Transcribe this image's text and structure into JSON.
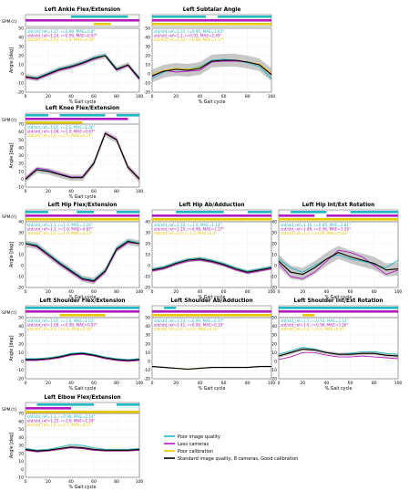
{
  "figure": {
    "xlabel": "% Gait cycle",
    "legend": [
      {
        "label": "Poor image quality",
        "color": "#22b7c4"
      },
      {
        "label": "Less cameras",
        "color": "#b31bbf"
      },
      {
        "label": "Poor calibration",
        "color": "#e8c600"
      },
      {
        "label": "Standard image quality, 8 cameras, Good calibration",
        "color": "#000000"
      }
    ],
    "colors": {
      "poor_image": "#22b7c4",
      "less_cameras": "#b31bbf",
      "poor_calibration": "#e8c600",
      "standard": "#000000",
      "band": "#9a9a9a"
    }
  },
  "chart_data": [
    {
      "type": "line",
      "title": "Left Ankle Flex/Extension",
      "ylabel": "Angle [deg]",
      "spm_label": "SPM{t}",
      "xlabel": "% Gait cycle",
      "xlim": [
        0,
        100
      ],
      "ylim": [
        -20,
        50
      ],
      "yticks": [
        -20,
        -10,
        0,
        10,
        20,
        30,
        40,
        50
      ],
      "xticks": [
        0,
        20,
        40,
        60,
        80,
        100
      ],
      "stats": [
        "std/std_ref=1.27, r=0.99, MAE=0.8°",
        "std/std_ref=1.24, r=0.99, MAE=0.97°",
        "std/std_ref=1.02, r=1.0, MAE=0.39°"
      ],
      "x": [
        0,
        10,
        20,
        30,
        40,
        50,
        60,
        70,
        80,
        90,
        100
      ],
      "series": [
        {
          "key": "standard",
          "values": [
            -3,
            -5,
            0,
            5,
            8,
            12,
            17,
            20,
            5,
            10,
            -5
          ]
        },
        {
          "key": "poor_image",
          "values": [
            -3,
            -4,
            1,
            6,
            9,
            13,
            18,
            21,
            6,
            10,
            -4
          ]
        },
        {
          "key": "less_cameras",
          "values": [
            -4,
            -6,
            -1,
            4,
            7,
            11,
            16,
            20,
            4,
            9,
            -6
          ]
        },
        {
          "key": "poor_calibration",
          "values": [
            -3,
            -5,
            0,
            5,
            8,
            12,
            17,
            20,
            5,
            10,
            -5
          ]
        }
      ],
      "band_width": 3
    },
    {
      "type": "line",
      "title": "Left Subtalar Angle",
      "ylabel": "",
      "spm_label": "",
      "xlabel": "% Gait cycle",
      "xlim": [
        0,
        100
      ],
      "ylim": [
        -20,
        50
      ],
      "yticks": [
        -20,
        -10,
        0,
        10,
        20,
        30,
        40,
        50
      ],
      "xticks": [
        0,
        20,
        40,
        60,
        80,
        100
      ],
      "stats": [
        "std/std_ref=1.31, r=0.95, MAE=1.63°",
        "std/std_ref=1.2, r=0.93, MAE=2.49°",
        "std/std_ref=1.02, r=0.98, MAE=1.17°"
      ],
      "x": [
        0,
        10,
        20,
        30,
        40,
        50,
        60,
        70,
        80,
        90,
        100
      ],
      "series": [
        {
          "key": "standard",
          "values": [
            -2,
            3,
            5,
            4,
            6,
            14,
            15,
            15,
            13,
            10,
            -1
          ]
        },
        {
          "key": "poor_image",
          "values": [
            -5,
            2,
            6,
            5,
            8,
            15,
            16,
            15,
            12,
            8,
            -5
          ]
        },
        {
          "key": "less_cameras",
          "values": [
            -3,
            4,
            2,
            3,
            4,
            13,
            14,
            14,
            13,
            10,
            0
          ]
        },
        {
          "key": "poor_calibration",
          "values": [
            0,
            4,
            6,
            5,
            7,
            14,
            15,
            15,
            13,
            11,
            1
          ]
        }
      ],
      "band_width": 7
    },
    {
      "type": "line",
      "title": "Left Knee Flex/Extension",
      "ylabel": "Angle [deg]",
      "spm_label": "SPM{t}",
      "xlabel": "% Gait cycle",
      "xlim": [
        0,
        100
      ],
      "ylim": [
        -10,
        70
      ],
      "yticks": [
        -10,
        0,
        10,
        20,
        30,
        40,
        50,
        60,
        70
      ],
      "xticks": [
        0,
        20,
        40,
        60,
        80,
        100
      ],
      "stats": [
        "std/std_ref=1.05, r=1.0, MAE=1.66°",
        "std/std_ref=1.08, r=1.0, MAE=0.67°",
        "std/std_ref=1.0, r=1.0, MAE=0.21°"
      ],
      "x": [
        0,
        10,
        20,
        30,
        40,
        50,
        60,
        70,
        80,
        90,
        100
      ],
      "series": [
        {
          "key": "standard",
          "values": [
            0,
            12,
            10,
            6,
            2,
            2,
            20,
            58,
            50,
            15,
            0
          ]
        },
        {
          "key": "poor_image",
          "values": [
            0,
            13,
            11,
            7,
            3,
            3,
            21,
            59,
            50,
            15,
            1
          ]
        },
        {
          "key": "less_cameras",
          "values": [
            1,
            14,
            12,
            7,
            3,
            3,
            21,
            59,
            51,
            16,
            1
          ]
        },
        {
          "key": "poor_calibration",
          "values": [
            0,
            12,
            10,
            6,
            2,
            2,
            20,
            58,
            50,
            15,
            0
          ]
        }
      ],
      "band_width": 4
    },
    {
      "type": "line",
      "title": "Left Hip Flex/Extension",
      "ylabel": "Angle [deg]",
      "spm_label": "SPM{t}",
      "xlabel": "% Gait cycle",
      "xlim": [
        0,
        100
      ],
      "ylim": [
        -20,
        40
      ],
      "yticks": [
        -20,
        -10,
        0,
        10,
        20,
        30,
        40
      ],
      "xticks": [
        0,
        20,
        40,
        60,
        80,
        100
      ],
      "stats": [
        "std/std_ref=1.1, r=1.0, MAE=1.26°",
        "std/std_ref=1.2, r=1.0, MAE=0.87°",
        "std/std_ref=1.0, r=1.0, MAE=0.13°"
      ],
      "x": [
        0,
        10,
        20,
        30,
        40,
        50,
        60,
        70,
        80,
        90,
        100
      ],
      "series": [
        {
          "key": "standard",
          "values": [
            20,
            18,
            10,
            2,
            -5,
            -12,
            -14,
            -5,
            15,
            22,
            20
          ]
        },
        {
          "key": "poor_image",
          "values": [
            21,
            19,
            11,
            3,
            -4,
            -11,
            -13,
            -4,
            16,
            23,
            21
          ]
        },
        {
          "key": "less_cameras",
          "values": [
            20,
            17,
            9,
            1,
            -6,
            -13,
            -15,
            -6,
            14,
            21,
            20
          ]
        },
        {
          "key": "poor_calibration",
          "values": [
            20,
            18,
            10,
            2,
            -5,
            -12,
            -14,
            -5,
            15,
            22,
            20
          ]
        }
      ],
      "band_width": 3
    },
    {
      "type": "line",
      "title": "Left Hip Ab/Adduction",
      "ylabel": "",
      "spm_label": "",
      "xlabel": "% Gait cycle",
      "xlim": [
        0,
        100
      ],
      "ylim": [
        -20,
        40
      ],
      "yticks": [
        -20,
        -10,
        0,
        10,
        20,
        30,
        40
      ],
      "xticks": [
        0,
        20,
        40,
        60,
        80,
        100
      ],
      "stats": [
        "std/std_ref=1.32, r=1.0, MAE=1.14°",
        "std/std_ref=1.25, r=0.98, MAE=1.17°",
        "std/std_ref=1.0, r=1.0, MAE=0.2°"
      ],
      "x": [
        0,
        10,
        20,
        30,
        40,
        50,
        60,
        70,
        80,
        90,
        100
      ],
      "series": [
        {
          "key": "standard",
          "values": [
            -4,
            -2,
            2,
            5,
            6,
            4,
            1,
            -3,
            -6,
            -4,
            -2
          ]
        },
        {
          "key": "poor_image",
          "values": [
            -3,
            -1,
            3,
            6,
            7,
            5,
            2,
            -2,
            -5,
            -3,
            -1
          ]
        },
        {
          "key": "less_cameras",
          "values": [
            -5,
            -3,
            1,
            4,
            5,
            3,
            0,
            -4,
            -7,
            -5,
            -3
          ]
        },
        {
          "key": "poor_calibration",
          "values": [
            -4,
            -2,
            2,
            5,
            6,
            4,
            1,
            -3,
            -6,
            -4,
            -2
          ]
        }
      ],
      "band_width": 2
    },
    {
      "type": "line",
      "title": "Left Hip Int/Ext Rotation",
      "ylabel": "",
      "spm_label": "",
      "xlabel": "% Gait cycle",
      "xlim": [
        0,
        100
      ],
      "ylim": [
        -20,
        40
      ],
      "yticks": [
        -20,
        -10,
        0,
        10,
        20,
        30,
        40
      ],
      "xticks": [
        0,
        20,
        40,
        60,
        80,
        100
      ],
      "stats": [
        "std/std_ref=1.16, r=0.85, MAE=2.81°",
        "std/std_ref=1.48, r=0.96, MAE=3.55°",
        "std/std_ref=1.0, r=0.99, MAE=0.43°"
      ],
      "x": [
        0,
        10,
        20,
        30,
        40,
        50,
        60,
        70,
        80,
        90,
        100
      ],
      "series": [
        {
          "key": "standard",
          "values": [
            4,
            -6,
            -8,
            -2,
            6,
            12,
            8,
            5,
            2,
            -4,
            -3
          ]
        },
        {
          "key": "poor_image",
          "values": [
            6,
            -2,
            -6,
            0,
            6,
            10,
            6,
            4,
            1,
            -2,
            5
          ]
        },
        {
          "key": "less_cameras",
          "values": [
            2,
            -10,
            -12,
            -6,
            4,
            14,
            12,
            8,
            0,
            -8,
            -4
          ]
        },
        {
          "key": "poor_calibration",
          "values": [
            4,
            -6,
            -8,
            -2,
            6,
            12,
            8,
            5,
            2,
            -4,
            -3
          ]
        }
      ],
      "band_width": 6
    },
    {
      "type": "line",
      "title": "Left Shoulder Flex/Extension",
      "ylabel": "Angle [deg]",
      "spm_label": "SPM{t}",
      "xlabel": "% Gait cycle",
      "xlim": [
        0,
        100
      ],
      "ylim": [
        -20,
        50
      ],
      "yticks": [
        -20,
        -10,
        0,
        10,
        20,
        30,
        40,
        50
      ],
      "xticks": [
        0,
        20,
        40,
        60,
        80,
        100
      ],
      "stats": [
        "std/std_ref=1.05, r=1.0, MAE=1.52°",
        "std/std_ref=1.08, r=0.99, MAE=0.97°",
        "std/std_ref=1.0, r=1.0, MAE=0.19°"
      ],
      "x": [
        0,
        10,
        20,
        30,
        40,
        50,
        60,
        70,
        80,
        90,
        100
      ],
      "series": [
        {
          "key": "standard",
          "values": [
            2,
            2,
            3,
            5,
            8,
            9,
            7,
            4,
            2,
            1,
            2
          ]
        },
        {
          "key": "poor_image",
          "values": [
            3,
            3,
            4,
            6,
            9,
            10,
            8,
            5,
            3,
            2,
            3
          ]
        },
        {
          "key": "less_cameras",
          "values": [
            1,
            1,
            2,
            4,
            7,
            8,
            6,
            3,
            1,
            0,
            1
          ]
        },
        {
          "key": "poor_calibration",
          "values": [
            2,
            2,
            3,
            5,
            8,
            9,
            7,
            4,
            2,
            1,
            2
          ]
        }
      ],
      "band_width": 1.5
    },
    {
      "type": "line",
      "title": "Left Shoulder Ab/Adduction",
      "ylabel": "",
      "spm_label": "",
      "xlabel": "% Gait cycle",
      "xlim": [
        0,
        100
      ],
      "ylim": [
        -20,
        50
      ],
      "yticks": [
        -20,
        -10,
        0,
        10,
        20,
        30,
        40,
        50
      ],
      "xticks": [
        0,
        20,
        40,
        60,
        80,
        100
      ],
      "stats": [
        "std/std_ref=1.23, r=0.99, MAE=0.37°",
        "std/std_ref=1.41, r=0.99, MAE=0.19°",
        "std/std_ref=1.0, r=1.0, MAE=0.12°"
      ],
      "x": [
        0,
        10,
        20,
        30,
        40,
        50,
        60,
        70,
        80,
        90,
        100
      ],
      "series": [
        {
          "key": "standard",
          "values": [
            -6,
            -7,
            -8,
            -9,
            -8,
            -7,
            -7,
            -7,
            -7,
            -6,
            -6
          ]
        },
        {
          "key": "poor_image",
          "values": [
            -6,
            -7,
            -8,
            -9,
            -8,
            -7,
            -7,
            -7,
            -7,
            -6,
            -6
          ]
        },
        {
          "key": "less_cameras",
          "values": [
            -6,
            -7,
            -8,
            -9,
            -8,
            -7,
            -7,
            -7,
            -7,
            -6,
            -6
          ]
        },
        {
          "key": "poor_calibration",
          "values": [
            -6,
            -7,
            -8,
            -9,
            -8,
            -7,
            -7,
            -7,
            -7,
            -6,
            -6
          ]
        }
      ],
      "band_width": 0.8
    },
    {
      "type": "line",
      "title": "Left Shoulder Int/Ext Rotation",
      "ylabel": "",
      "spm_label": "",
      "xlabel": "% Gait cycle",
      "xlim": [
        0,
        100
      ],
      "ylim": [
        -20,
        50
      ],
      "yticks": [
        -20,
        -10,
        0,
        10,
        20,
        30,
        40,
        50
      ],
      "xticks": [
        0,
        20,
        40,
        60,
        80,
        100
      ],
      "stats": [
        "std/std_ref=1.3, r=0.93, MAE=2.12°",
        "std/std_ref=1.6, r=0.96, MAE=3.16°",
        "std/std_ref=1.0, r=1.0, MAE=0.25°"
      ],
      "x": [
        0,
        10,
        20,
        30,
        40,
        50,
        60,
        70,
        80,
        90,
        100
      ],
      "series": [
        {
          "key": "standard",
          "values": [
            6,
            10,
            14,
            13,
            10,
            8,
            8,
            9,
            9,
            7,
            6
          ]
        },
        {
          "key": "poor_image",
          "values": [
            8,
            12,
            16,
            14,
            10,
            8,
            9,
            11,
            11,
            9,
            8
          ]
        },
        {
          "key": "less_cameras",
          "values": [
            2,
            5,
            10,
            10,
            7,
            5,
            5,
            6,
            5,
            4,
            3
          ]
        },
        {
          "key": "poor_calibration",
          "values": [
            6,
            10,
            14,
            13,
            10,
            8,
            8,
            9,
            9,
            7,
            6
          ]
        }
      ],
      "band_width": 2
    },
    {
      "type": "line",
      "title": "Left Elbow Flex/Extension",
      "ylabel": "Angle [deg]",
      "spm_label": "SPM{t}",
      "xlabel": "% Gait cycle",
      "xlim": [
        0,
        100
      ],
      "ylim": [
        -10,
        70
      ],
      "yticks": [
        -10,
        0,
        10,
        20,
        30,
        40,
        50,
        60,
        70
      ],
      "xticks": [
        0,
        20,
        40,
        60,
        80,
        100
      ],
      "stats": [
        "std/std_ref=1.1, r=0.99, MAE=2.14°",
        "std/std_ref=1.15, r=1.0, MAE=1.29°",
        "std/std_ref=1.0, r=1.0, MAE=0.15°"
      ],
      "x": [
        0,
        10,
        20,
        30,
        40,
        50,
        60,
        70,
        80,
        90,
        100
      ],
      "series": [
        {
          "key": "standard",
          "values": [
            25,
            23,
            24,
            26,
            28,
            27,
            25,
            24,
            24,
            24,
            25
          ]
        },
        {
          "key": "poor_image",
          "values": [
            26,
            24,
            25,
            28,
            31,
            30,
            27,
            25,
            25,
            25,
            26
          ]
        },
        {
          "key": "less_cameras",
          "values": [
            24,
            22,
            23,
            25,
            27,
            26,
            24,
            23,
            23,
            23,
            24
          ]
        },
        {
          "key": "poor_calibration",
          "values": [
            25,
            23,
            24,
            26,
            28,
            27,
            25,
            24,
            24,
            24,
            25
          ]
        }
      ],
      "band_width": 2
    }
  ]
}
